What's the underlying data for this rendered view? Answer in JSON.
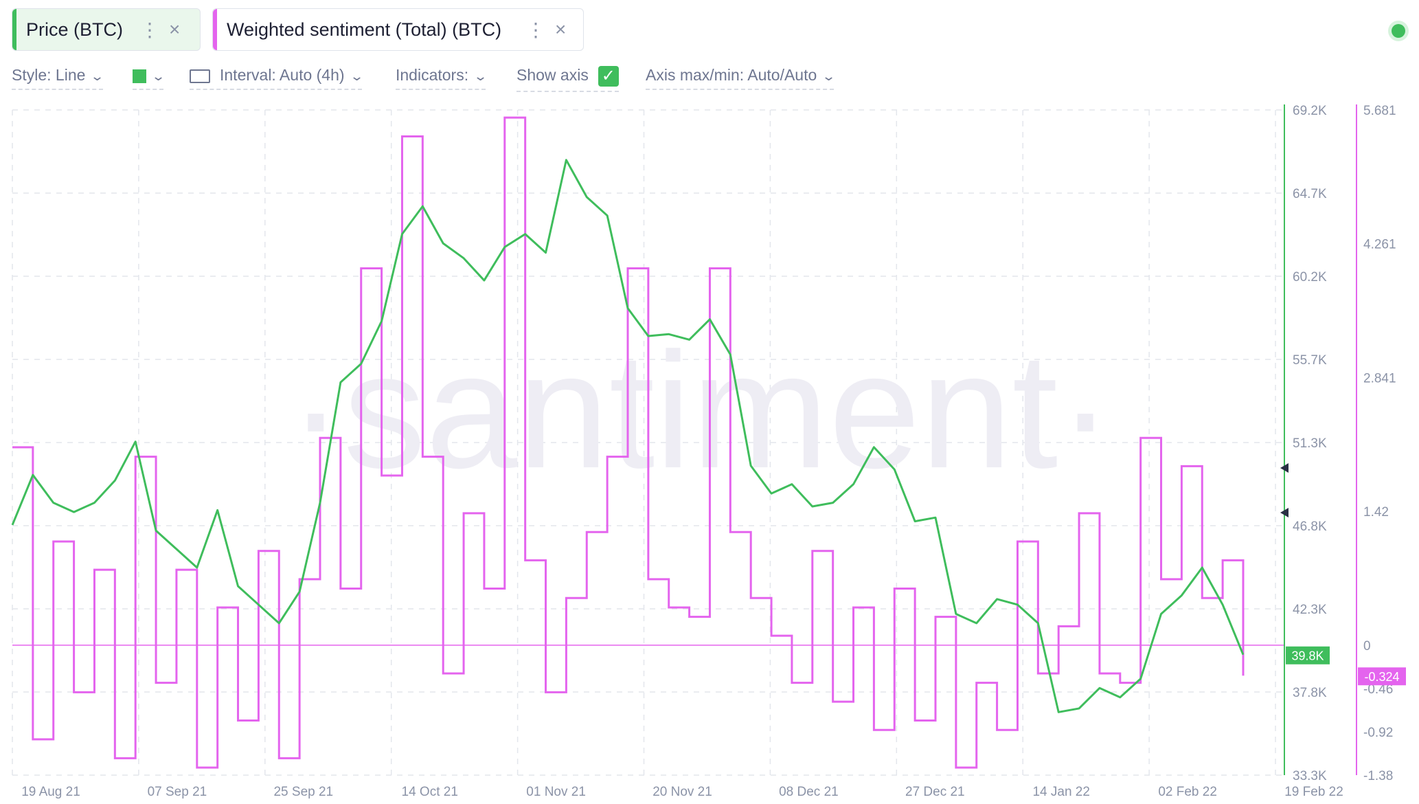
{
  "legend": {
    "price_label": "Price (BTC)",
    "sentiment_label": "Weighted sentiment (Total) (BTC)",
    "menu_glyph": "⋮",
    "close_glyph": "×"
  },
  "toolbar": {
    "style": "Style: Line",
    "color_value": "#3fbd5c",
    "interval": "Interval: Auto (4h)",
    "indicators": "Indicators:",
    "show_axis": "Show axis",
    "show_axis_checked": true,
    "axis_maxmin": "Axis max/min: Auto/Auto"
  },
  "watermark": "·santiment·",
  "colors": {
    "price": "#3fbd5c",
    "sentiment": "#e464ee",
    "sentiment_fill": "#fbe8fd",
    "grid": "#e3e6ec",
    "axis_text": "#8b93a7"
  },
  "chart_data": {
    "type": "line",
    "x_ticks": [
      "19 Aug 21",
      "07 Sep 21",
      "25 Sep 21",
      "14 Oct 21",
      "01 Nov 21",
      "20 Nov 21",
      "08 Dec 21",
      "27 Dec 21",
      "14 Jan 22",
      "02 Feb 22",
      "19 Feb 22"
    ],
    "price_axis": {
      "ticks": [
        "69.2K",
        "64.7K",
        "60.2K",
        "55.7K",
        "51.3K",
        "46.8K",
        "42.3K",
        "37.8K",
        "33.3K"
      ],
      "current": "39.8K",
      "ylim": [
        33300,
        69200
      ]
    },
    "sentiment_axis": {
      "ticks": [
        "5.681",
        "4.261",
        "2.841",
        "1.42",
        "0",
        "-0.46",
        "-0.92",
        "-1.38"
      ],
      "current": "-0.324",
      "ylim": [
        -1.38,
        5.681
      ]
    },
    "series": [
      {
        "name": "Price (BTC)",
        "axis": "price",
        "x": [
          "19 Aug 21",
          "22 Aug 21",
          "25 Aug 21",
          "28 Aug 21",
          "01 Sep 21",
          "04 Sep 21",
          "07 Sep 21",
          "10 Sep 21",
          "13 Sep 21",
          "16 Sep 21",
          "19 Sep 21",
          "22 Sep 21",
          "25 Sep 21",
          "28 Sep 21",
          "01 Oct 21",
          "04 Oct 21",
          "07 Oct 21",
          "10 Oct 21",
          "14 Oct 21",
          "17 Oct 21",
          "20 Oct 21",
          "23 Oct 21",
          "26 Oct 21",
          "29 Oct 21",
          "01 Nov 21",
          "04 Nov 21",
          "07 Nov 21",
          "10 Nov 21",
          "13 Nov 21",
          "16 Nov 21",
          "20 Nov 21",
          "23 Nov 21",
          "26 Nov 21",
          "29 Nov 21",
          "02 Dec 21",
          "05 Dec 21",
          "08 Dec 21",
          "11 Dec 21",
          "14 Dec 21",
          "17 Dec 21",
          "20 Dec 21",
          "23 Dec 21",
          "27 Dec 21",
          "30 Dec 21",
          "02 Jan 22",
          "05 Jan 22",
          "08 Jan 22",
          "11 Jan 22",
          "14 Jan 22",
          "17 Jan 22",
          "20 Jan 22",
          "23 Jan 22",
          "26 Jan 22",
          "29 Jan 22",
          "02 Feb 22",
          "05 Feb 22",
          "08 Feb 22",
          "11 Feb 22",
          "14 Feb 22",
          "17 Feb 22",
          "19 Feb 22"
        ],
        "values": [
          46800,
          49500,
          48000,
          47500,
          48000,
          49200,
          51300,
          46500,
          45500,
          44500,
          47600,
          43500,
          42500,
          41500,
          43200,
          48000,
          54500,
          55500,
          57800,
          62500,
          64000,
          62000,
          61200,
          60000,
          61800,
          62500,
          61500,
          66500,
          64500,
          63500,
          58500,
          57000,
          57100,
          56800,
          57900,
          56000,
          50000,
          48500,
          49000,
          47800,
          48000,
          49000,
          51000,
          49800,
          47000,
          47200,
          42000,
          41500,
          42800,
          42500,
          41500,
          36700,
          36900,
          38000,
          37500,
          38500,
          42000,
          43000,
          44500,
          42500,
          39800
        ]
      },
      {
        "name": "Weighted sentiment (Total) (BTC)",
        "axis": "sentiment",
        "x": [
          "19 Aug 21",
          "22 Aug 21",
          "25 Aug 21",
          "28 Aug 21",
          "01 Sep 21",
          "04 Sep 21",
          "07 Sep 21",
          "10 Sep 21",
          "13 Sep 21",
          "16 Sep 21",
          "19 Sep 21",
          "22 Sep 21",
          "25 Sep 21",
          "28 Sep 21",
          "01 Oct 21",
          "04 Oct 21",
          "07 Oct 21",
          "10 Oct 21",
          "14 Oct 21",
          "17 Oct 21",
          "20 Oct 21",
          "23 Oct 21",
          "26 Oct 21",
          "29 Oct 21",
          "01 Nov 21",
          "04 Nov 21",
          "07 Nov 21",
          "10 Nov 21",
          "13 Nov 21",
          "16 Nov 21",
          "20 Nov 21",
          "23 Nov 21",
          "26 Nov 21",
          "29 Nov 21",
          "02 Dec 21",
          "05 Dec 21",
          "08 Dec 21",
          "11 Dec 21",
          "14 Dec 21",
          "17 Dec 21",
          "20 Dec 21",
          "23 Dec 21",
          "27 Dec 21",
          "30 Dec 21",
          "02 Jan 22",
          "05 Jan 22",
          "08 Jan 22",
          "11 Jan 22",
          "14 Jan 22",
          "17 Jan 22",
          "20 Jan 22",
          "23 Jan 22",
          "26 Jan 22",
          "29 Jan 22",
          "02 Feb 22",
          "05 Feb 22",
          "08 Feb 22",
          "11 Feb 22",
          "14 Feb 22",
          "17 Feb 22",
          "19 Feb 22"
        ],
        "values": [
          2.1,
          -1.0,
          1.1,
          -0.5,
          0.8,
          -1.2,
          2.0,
          -0.4,
          0.8,
          -1.3,
          0.4,
          -0.8,
          1.0,
          -1.2,
          0.7,
          2.2,
          0.6,
          4.0,
          1.8,
          5.4,
          2.0,
          -0.3,
          1.4,
          0.6,
          5.6,
          0.9,
          -0.5,
          0.5,
          1.2,
          2.0,
          4.0,
          0.7,
          0.4,
          0.3,
          4.0,
          1.2,
          0.5,
          0.1,
          -0.4,
          1.0,
          -0.6,
          0.4,
          -0.9,
          0.6,
          -0.8,
          0.3,
          -1.3,
          -0.4,
          -0.9,
          1.1,
          -0.3,
          0.2,
          1.4,
          -0.3,
          -0.4,
          2.2,
          0.7,
          1.9,
          0.5,
          0.9,
          -0.324
        ]
      }
    ]
  }
}
